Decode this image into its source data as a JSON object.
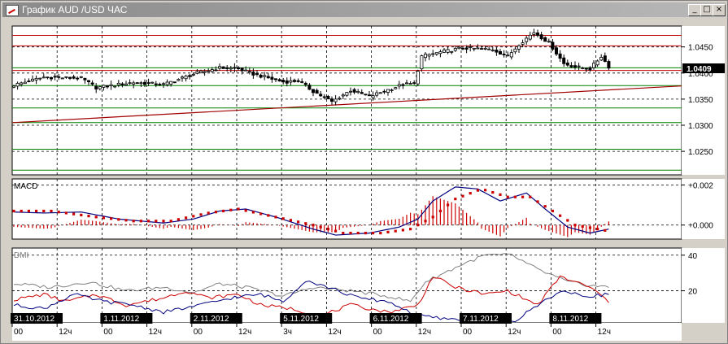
{
  "window": {
    "title": "График AUD /USD  ЧАС",
    "buttons": {
      "minimize": "_",
      "maximize": "□",
      "close": "×"
    }
  },
  "colors": {
    "price_bg": "#ffffff",
    "resistance": "#c00000",
    "support": "#008000",
    "trendline": "#a00000",
    "macd_line": "#000080",
    "signal": "#cc0000",
    "dmi_adx": "#808080",
    "dmi_plus": "#cc0000",
    "dmi_minus": "#000080",
    "current_price_bg": "#000000"
  },
  "chart_data": [
    {
      "type": "candlestick",
      "name": "AUD/USD",
      "ylim": [
        1.0205,
        1.049
      ],
      "y_ticks": [
        "1.0450",
        "1.0400",
        "1.0350",
        "1.0300",
        "1.0250"
      ],
      "current_price": "1.0409",
      "current_price_value": 1.0409,
      "horizontal_levels": {
        "red": [
          1.0472,
          1.0452,
          1.0405
        ],
        "green": [
          1.041,
          1.0376,
          1.0333,
          1.0305,
          1.0254,
          1.0214
        ]
      },
      "trendline": {
        "from": [
          0,
          1.0305
        ],
        "to": [
          160,
          1.0368
        ]
      },
      "bars": 160,
      "close_anchors": [
        [
          0,
          1.0377
        ],
        [
          8,
          1.0392
        ],
        [
          18,
          1.039
        ],
        [
          22,
          1.0372
        ],
        [
          32,
          1.0382
        ],
        [
          40,
          1.0378
        ],
        [
          48,
          1.0398
        ],
        [
          55,
          1.041
        ],
        [
          60,
          1.0408
        ],
        [
          64,
          1.0398
        ],
        [
          72,
          1.0383
        ],
        [
          76,
          1.0385
        ],
        [
          80,
          1.0365
        ],
        [
          85,
          1.0345
        ],
        [
          90,
          1.0367
        ],
        [
          95,
          1.0355
        ],
        [
          100,
          1.0368
        ],
        [
          104,
          1.0378
        ],
        [
          107,
          1.038
        ],
        [
          109,
          1.0432
        ],
        [
          114,
          1.044
        ],
        [
          120,
          1.0448
        ],
        [
          128,
          1.0445
        ],
        [
          132,
          1.0432
        ],
        [
          135,
          1.0455
        ],
        [
          139,
          1.0478
        ],
        [
          143,
          1.0458
        ],
        [
          147,
          1.0418
        ],
        [
          150,
          1.0412
        ],
        [
          154,
          1.0408
        ],
        [
          157,
          1.0432
        ],
        [
          159,
          1.0412
        ]
      ]
    },
    {
      "type": "line",
      "name": "MACD",
      "title": "MACD",
      "ylim": [
        -0.0007,
        0.0023
      ],
      "y_ticks": [
        "+0.002",
        "+0.000"
      ],
      "y_tick_values": [
        0.002,
        0.0
      ],
      "series": [
        {
          "role": "macd",
          "values": [
            [
              0,
              0.00065
            ],
            [
              8,
              0.0006
            ],
            [
              18,
              0.00065
            ],
            [
              28,
              0.0003
            ],
            [
              40,
              0.0001
            ],
            [
              48,
              0.0003
            ],
            [
              55,
              0.0007
            ],
            [
              62,
              0.0008
            ],
            [
              70,
              0.0004
            ],
            [
              80,
              -0.0002
            ],
            [
              86,
              -0.0005
            ],
            [
              95,
              -0.0004
            ],
            [
              103,
              -0.0001
            ],
            [
              108,
              0.0003
            ],
            [
              112,
              0.0012
            ],
            [
              118,
              0.0019
            ],
            [
              124,
              0.0018
            ],
            [
              130,
              0.0012
            ],
            [
              137,
              0.0016
            ],
            [
              142,
              0.0008
            ],
            [
              148,
              -0.0001
            ],
            [
              154,
              -0.0004
            ],
            [
              159,
              -0.0002
            ]
          ]
        },
        {
          "role": "signal",
          "values": [
            [
              0,
              0.0007
            ],
            [
              10,
              0.0007
            ],
            [
              22,
              0.0004
            ],
            [
              32,
              0.0002
            ],
            [
              42,
              0.0002
            ],
            [
              52,
              0.0006
            ],
            [
              60,
              0.0008
            ],
            [
              70,
              0.0004
            ],
            [
              80,
              0.0
            ],
            [
              88,
              -0.0004
            ],
            [
              98,
              -0.0004
            ],
            [
              106,
              -0.0002
            ],
            [
              112,
              0.0004
            ],
            [
              118,
              0.0013
            ],
            [
              125,
              0.0018
            ],
            [
              132,
              0.0014
            ],
            [
              138,
              0.0014
            ],
            [
              144,
              0.0007
            ],
            [
              150,
              0.0
            ],
            [
              156,
              -0.0002
            ],
            [
              159,
              -0.0003
            ]
          ]
        }
      ]
    },
    {
      "type": "line",
      "name": "DMI",
      "title": "DMI",
      "ylim": [
        2,
        44
      ],
      "y_ticks": [
        "40",
        "20"
      ],
      "y_tick_values": [
        40,
        20
      ],
      "series": [
        {
          "role": "adx",
          "values": [
            [
              0,
              24
            ],
            [
              10,
              22
            ],
            [
              20,
              25
            ],
            [
              30,
              20
            ],
            [
              40,
              22
            ],
            [
              48,
              19
            ],
            [
              55,
              24
            ],
            [
              62,
              22
            ],
            [
              72,
              17
            ],
            [
              80,
              22
            ],
            [
              90,
              20
            ],
            [
              100,
              17
            ],
            [
              106,
              14
            ],
            [
              110,
              25
            ],
            [
              120,
              35
            ],
            [
              126,
              40
            ],
            [
              133,
              40
            ],
            [
              140,
              32
            ],
            [
              148,
              25
            ],
            [
              154,
              23
            ],
            [
              159,
              22
            ]
          ]
        },
        {
          "role": "plus_di",
          "values": [
            [
              0,
              15
            ],
            [
              8,
              18
            ],
            [
              14,
              14
            ],
            [
              22,
              18
            ],
            [
              30,
              12
            ],
            [
              40,
              16
            ],
            [
              46,
              20
            ],
            [
              52,
              16
            ],
            [
              60,
              18
            ],
            [
              66,
              12
            ],
            [
              74,
              10
            ],
            [
              82,
              6
            ],
            [
              90,
              12
            ],
            [
              100,
              8
            ],
            [
              108,
              12
            ],
            [
              112,
              28
            ],
            [
              118,
              22
            ],
            [
              126,
              18
            ],
            [
              132,
              20
            ],
            [
              140,
              12
            ],
            [
              146,
              28
            ],
            [
              154,
              22
            ],
            [
              159,
              14
            ]
          ]
        },
        {
          "role": "minus_di",
          "values": [
            [
              0,
              12
            ],
            [
              8,
              10
            ],
            [
              16,
              18
            ],
            [
              24,
              14
            ],
            [
              32,
              12
            ],
            [
              40,
              8
            ],
            [
              50,
              12
            ],
            [
              58,
              16
            ],
            [
              66,
              18
            ],
            [
              72,
              14
            ],
            [
              78,
              26
            ],
            [
              84,
              22
            ],
            [
              92,
              16
            ],
            [
              100,
              14
            ],
            [
              108,
              6
            ],
            [
              116,
              4
            ],
            [
              126,
              5
            ],
            [
              134,
              3
            ],
            [
              140,
              12
            ],
            [
              146,
              20
            ],
            [
              152,
              17
            ],
            [
              159,
              18
            ]
          ]
        }
      ]
    }
  ],
  "time_axis": {
    "dates": [
      {
        "label": "31.10.2012",
        "bar": 0
      },
      {
        "label": "1.11.2012",
        "bar": 24
      },
      {
        "label": "2.11.2012",
        "bar": 48
      },
      {
        "label": "5.11.2012",
        "bar": 72
      },
      {
        "label": "6.11.2012",
        "bar": 96
      },
      {
        "label": "7.11.2012",
        "bar": 120
      },
      {
        "label": "8.11.2012",
        "bar": 144
      }
    ],
    "hour_labels": [
      {
        "label": "00",
        "bar": 0
      },
      {
        "label": "12ч",
        "bar": 12
      },
      {
        "label": "00",
        "bar": 24
      },
      {
        "label": "12ч",
        "bar": 36
      },
      {
        "label": "00",
        "bar": 48
      },
      {
        "label": "12ч",
        "bar": 60
      },
      {
        "label": "3ч",
        "bar": 72
      },
      {
        "label": "12ч",
        "bar": 84
      },
      {
        "label": "00",
        "bar": 96
      },
      {
        "label": "12ч",
        "bar": 108
      },
      {
        "label": "00",
        "bar": 120
      },
      {
        "label": "12ч",
        "bar": 132
      },
      {
        "label": "00",
        "bar": 144
      },
      {
        "label": "12ч",
        "bar": 156
      }
    ]
  }
}
